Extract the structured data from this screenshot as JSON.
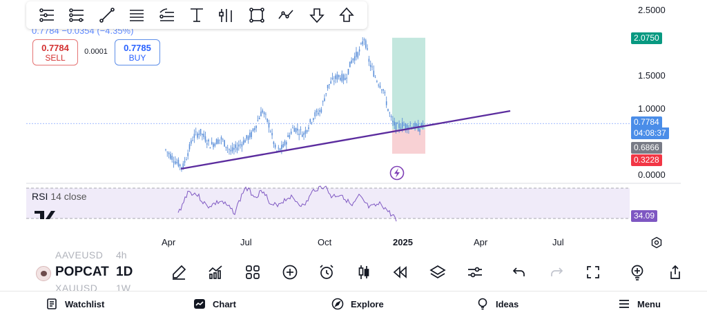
{
  "toolbar": {
    "tools": [
      {
        "name": "horizontal-lines-tool-icon"
      },
      {
        "name": "sliders-tool-icon"
      },
      {
        "name": "trend-line-tool-icon"
      },
      {
        "name": "parallel-lines-tool-icon"
      },
      {
        "name": "fib-retracement-tool-icon"
      },
      {
        "name": "measure-tool-icon"
      },
      {
        "name": "pitchfork-tool-icon"
      },
      {
        "name": "rectangle-tool-icon"
      },
      {
        "name": "path-tool-icon"
      },
      {
        "name": "arrow-down-tool-icon"
      },
      {
        "name": "arrow-up-tool-icon"
      }
    ]
  },
  "ticker": {
    "line": "0.7784 −0.0354 (−4.35%)"
  },
  "trade": {
    "sell_price": "0.7784",
    "sell_label": "SELL",
    "spread": "0.0001",
    "buy_price": "0.7785",
    "buy_label": "BUY"
  },
  "price_axis": {
    "ticks": [
      "2.5000",
      "2.0750",
      "1.5000",
      "1.0000",
      "0.7784",
      "04:08:37",
      "0.6866",
      "0.3228",
      "0.0000"
    ],
    "labels": {
      "target": "2.0750",
      "last": "0.7784",
      "countdown": "04:08:37",
      "entry": "0.6866",
      "stop": "0.3228"
    },
    "colors": {
      "target": "#089981",
      "last": "#2962ff",
      "entry": "#787b86",
      "stop": "#f23645"
    }
  },
  "rsi": {
    "title": "RSI",
    "params": "14 close",
    "value": "34.09",
    "color": "#7e57c2"
  },
  "date_axis": {
    "ticks": [
      "Apr",
      "Jul",
      "Oct",
      "2025",
      "Apr",
      "Jul"
    ]
  },
  "app_bar": {
    "symbol_above": "AAVEUSD",
    "symbol": "POPCAT",
    "symbol_below": "XAUUSD",
    "interval_above": "4h",
    "interval": "1D",
    "interval_below": "1W"
  },
  "bottom_nav": {
    "watchlist": "Watchlist",
    "chart": "Chart",
    "explore": "Explore",
    "ideas": "Ideas",
    "menu": "Menu"
  },
  "chart_data": {
    "type": "candlestick",
    "price_range": [
      0,
      2.5
    ],
    "last_price": 0.7784,
    "long_position": {
      "entry": 0.6866,
      "target": 2.075,
      "stop": 0.3228
    },
    "trendline_color": "#5b2c9e",
    "series_color": "#5b8fd9"
  }
}
